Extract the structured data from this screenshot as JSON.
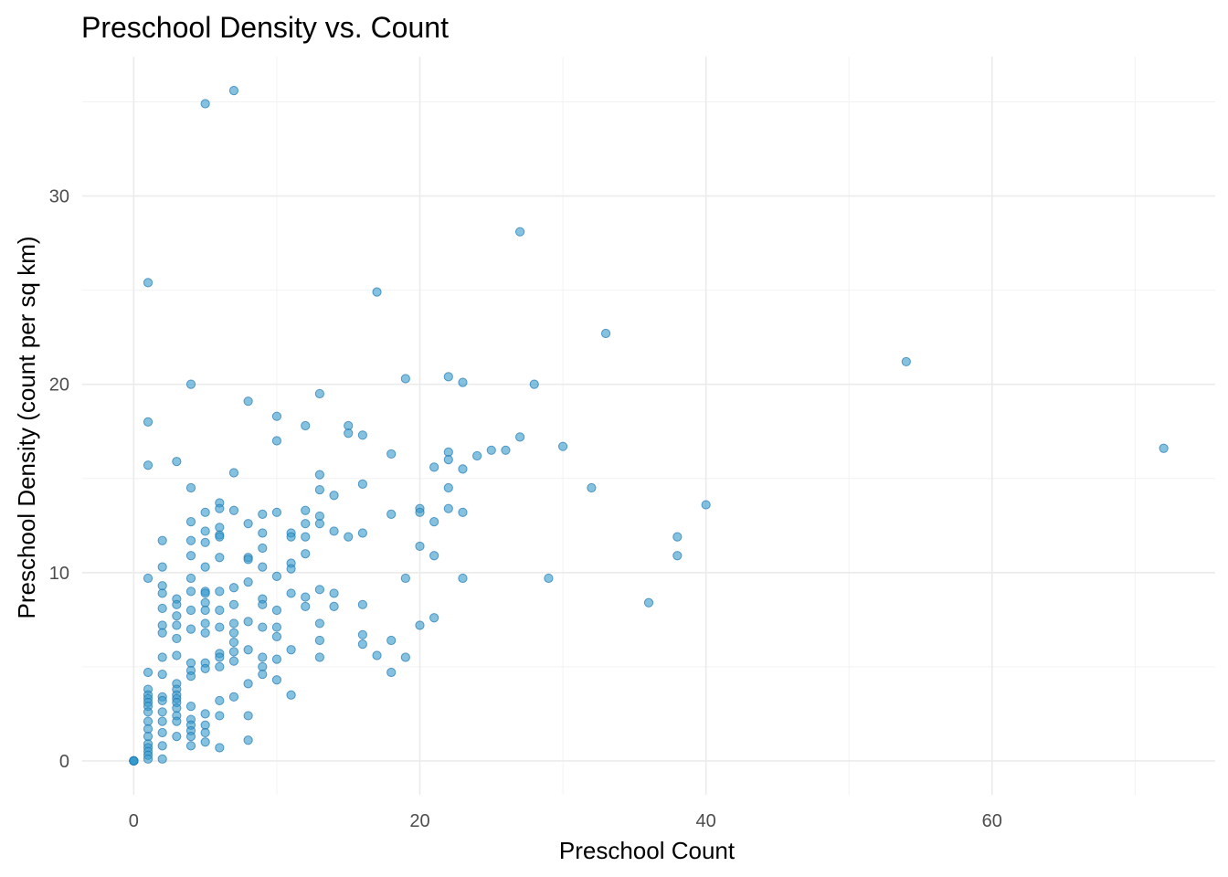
{
  "chart_data": {
    "type": "scatter",
    "title": "Preschool Density vs. Count",
    "xlabel": "Preschool Count",
    "ylabel": "Preschool Density (count per sq km)",
    "xlim": [
      -3.6,
      75.6
    ],
    "ylim": [
      -1.8,
      37.4
    ],
    "x_ticks": [
      0,
      20,
      40,
      60
    ],
    "x_tick_labels": [
      "0",
      "20",
      "40",
      "60"
    ],
    "y_ticks": [
      0,
      10,
      20,
      30
    ],
    "y_tick_labels": [
      "0",
      "10",
      "20",
      "30"
    ],
    "grid": true,
    "point_color": "#3399cc",
    "point_stroke": "#1f78b4",
    "points": [
      [
        0,
        0
      ],
      [
        0,
        0
      ],
      [
        0,
        0
      ],
      [
        0,
        0
      ],
      [
        0,
        0
      ],
      [
        1,
        25.4
      ],
      [
        1,
        18.0
      ],
      [
        1,
        15.7
      ],
      [
        1,
        9.7
      ],
      [
        1,
        4.7
      ],
      [
        1,
        3.8
      ],
      [
        1,
        3.5
      ],
      [
        1,
        3.3
      ],
      [
        1,
        3.1
      ],
      [
        1,
        2.9
      ],
      [
        1,
        2.6
      ],
      [
        1,
        2.1
      ],
      [
        1,
        1.7
      ],
      [
        1,
        1.3
      ],
      [
        1,
        0.9
      ],
      [
        1,
        0.7
      ],
      [
        1,
        0.5
      ],
      [
        1,
        0.3
      ],
      [
        1,
        0.1
      ],
      [
        2,
        11.7
      ],
      [
        2,
        10.3
      ],
      [
        2,
        9.3
      ],
      [
        2,
        8.9
      ],
      [
        2,
        8.1
      ],
      [
        2,
        7.2
      ],
      [
        2,
        6.8
      ],
      [
        2,
        5.5
      ],
      [
        2,
        4.6
      ],
      [
        2,
        3.4
      ],
      [
        2,
        3.2
      ],
      [
        2,
        2.6
      ],
      [
        2,
        2.1
      ],
      [
        2,
        1.5
      ],
      [
        2,
        0.8
      ],
      [
        2,
        0.1
      ],
      [
        3,
        15.9
      ],
      [
        3,
        8.6
      ],
      [
        3,
        8.3
      ],
      [
        3,
        7.7
      ],
      [
        3,
        7.2
      ],
      [
        3,
        6.5
      ],
      [
        3,
        5.6
      ],
      [
        3,
        4.1
      ],
      [
        3,
        3.8
      ],
      [
        3,
        3.5
      ],
      [
        3,
        3.3
      ],
      [
        3,
        3.1
      ],
      [
        3,
        2.8
      ],
      [
        3,
        2.4
      ],
      [
        3,
        2.1
      ],
      [
        3,
        1.3
      ],
      [
        4,
        20.0
      ],
      [
        4,
        14.5
      ],
      [
        4,
        12.7
      ],
      [
        4,
        11.7
      ],
      [
        4,
        10.9
      ],
      [
        4,
        9.7
      ],
      [
        4,
        9.0
      ],
      [
        4,
        8.0
      ],
      [
        4,
        7.0
      ],
      [
        4,
        5.2
      ],
      [
        4,
        4.8
      ],
      [
        4,
        4.5
      ],
      [
        4,
        2.9
      ],
      [
        4,
        2.2
      ],
      [
        4,
        1.9
      ],
      [
        4,
        1.6
      ],
      [
        4,
        1.3
      ],
      [
        4,
        0.8
      ],
      [
        5,
        34.9
      ],
      [
        5,
        13.2
      ],
      [
        5,
        12.2
      ],
      [
        5,
        11.6
      ],
      [
        5,
        10.3
      ],
      [
        5,
        9.0
      ],
      [
        5,
        8.9
      ],
      [
        5,
        8.4
      ],
      [
        5,
        8.0
      ],
      [
        5,
        7.3
      ],
      [
        5,
        6.8
      ],
      [
        5,
        5.2
      ],
      [
        5,
        4.9
      ],
      [
        5,
        2.5
      ],
      [
        5,
        1.9
      ],
      [
        5,
        1.5
      ],
      [
        5,
        1.0
      ],
      [
        6,
        13.7
      ],
      [
        6,
        13.4
      ],
      [
        6,
        12.4
      ],
      [
        6,
        12.0
      ],
      [
        6,
        11.9
      ],
      [
        6,
        10.8
      ],
      [
        6,
        9.0
      ],
      [
        6,
        8.0
      ],
      [
        6,
        7.1
      ],
      [
        6,
        5.7
      ],
      [
        6,
        5.5
      ],
      [
        6,
        5.0
      ],
      [
        6,
        3.2
      ],
      [
        6,
        2.4
      ],
      [
        6,
        0.7
      ],
      [
        7,
        35.6
      ],
      [
        7,
        15.3
      ],
      [
        7,
        13.3
      ],
      [
        7,
        9.2
      ],
      [
        7,
        8.3
      ],
      [
        7,
        7.3
      ],
      [
        7,
        6.8
      ],
      [
        7,
        6.3
      ],
      [
        7,
        5.8
      ],
      [
        7,
        5.3
      ],
      [
        7,
        3.4
      ],
      [
        8,
        19.1
      ],
      [
        8,
        12.6
      ],
      [
        8,
        10.8
      ],
      [
        8,
        10.7
      ],
      [
        8,
        9.5
      ],
      [
        8,
        7.4
      ],
      [
        8,
        5.9
      ],
      [
        8,
        4.1
      ],
      [
        8,
        2.4
      ],
      [
        8,
        1.1
      ],
      [
        9,
        13.1
      ],
      [
        9,
        12.1
      ],
      [
        9,
        11.3
      ],
      [
        9,
        10.3
      ],
      [
        9,
        8.6
      ],
      [
        9,
        8.3
      ],
      [
        9,
        7.1
      ],
      [
        9,
        5.5
      ],
      [
        9,
        5.0
      ],
      [
        9,
        4.6
      ],
      [
        10,
        18.3
      ],
      [
        10,
        17.0
      ],
      [
        10,
        13.2
      ],
      [
        10,
        9.8
      ],
      [
        10,
        8.0
      ],
      [
        10,
        7.1
      ],
      [
        10,
        6.6
      ],
      [
        10,
        5.4
      ],
      [
        10,
        4.3
      ],
      [
        11,
        12.1
      ],
      [
        11,
        11.9
      ],
      [
        11,
        10.5
      ],
      [
        11,
        10.2
      ],
      [
        11,
        8.9
      ],
      [
        11,
        5.9
      ],
      [
        11,
        3.5
      ],
      [
        12,
        17.8
      ],
      [
        12,
        13.3
      ],
      [
        12,
        12.6
      ],
      [
        12,
        11.9
      ],
      [
        12,
        11.0
      ],
      [
        12,
        8.7
      ],
      [
        12,
        8.2
      ],
      [
        13,
        19.5
      ],
      [
        13,
        15.2
      ],
      [
        13,
        14.4
      ],
      [
        13,
        13.0
      ],
      [
        13,
        12.6
      ],
      [
        13,
        9.1
      ],
      [
        13,
        7.3
      ],
      [
        13,
        6.4
      ],
      [
        13,
        5.5
      ],
      [
        14,
        14.1
      ],
      [
        14,
        12.2
      ],
      [
        14,
        8.9
      ],
      [
        14,
        8.2
      ],
      [
        15,
        17.8
      ],
      [
        15,
        17.4
      ],
      [
        15,
        11.9
      ],
      [
        16,
        17.3
      ],
      [
        16,
        14.7
      ],
      [
        16,
        12.1
      ],
      [
        16,
        8.3
      ],
      [
        16,
        6.7
      ],
      [
        16,
        6.2
      ],
      [
        17,
        24.9
      ],
      [
        17,
        5.6
      ],
      [
        18,
        16.3
      ],
      [
        18,
        13.1
      ],
      [
        18,
        6.4
      ],
      [
        18,
        4.7
      ],
      [
        19,
        20.3
      ],
      [
        19,
        9.7
      ],
      [
        19,
        5.5
      ],
      [
        20,
        13.4
      ],
      [
        20,
        13.2
      ],
      [
        20,
        11.4
      ],
      [
        20,
        7.2
      ],
      [
        21,
        15.6
      ],
      [
        21,
        12.7
      ],
      [
        21,
        10.9
      ],
      [
        21,
        7.6
      ],
      [
        22,
        20.4
      ],
      [
        22,
        16.4
      ],
      [
        22,
        16.0
      ],
      [
        22,
        14.5
      ],
      [
        22,
        13.4
      ],
      [
        23,
        20.1
      ],
      [
        23,
        15.5
      ],
      [
        23,
        13.2
      ],
      [
        23,
        9.7
      ],
      [
        24,
        16.2
      ],
      [
        25,
        16.5
      ],
      [
        26,
        16.5
      ],
      [
        27,
        28.1
      ],
      [
        27,
        17.2
      ],
      [
        28,
        20.0
      ],
      [
        29,
        9.7
      ],
      [
        30,
        16.7
      ],
      [
        32,
        14.5
      ],
      [
        33,
        22.7
      ],
      [
        36,
        8.4
      ],
      [
        38,
        11.9
      ],
      [
        38,
        10.9
      ],
      [
        40,
        13.6
      ],
      [
        54,
        21.2
      ],
      [
        72,
        16.6
      ]
    ]
  }
}
